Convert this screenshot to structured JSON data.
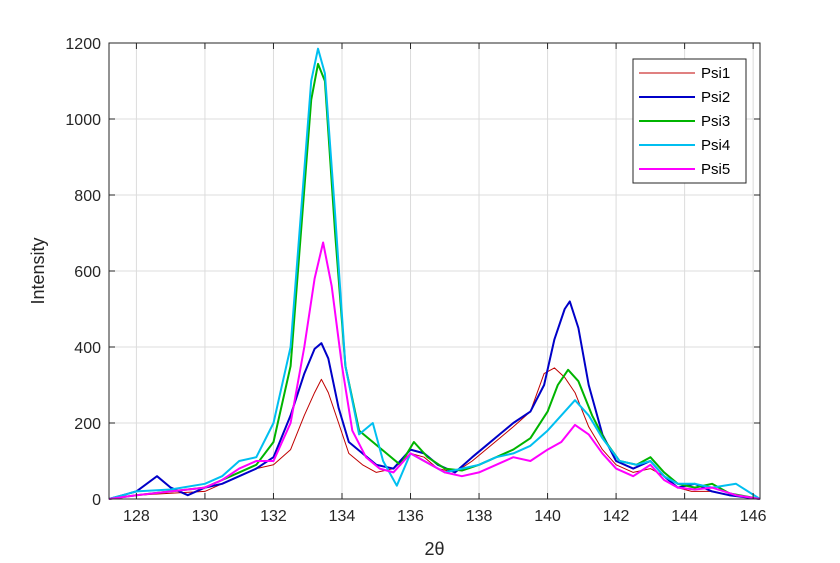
{
  "chart_data": {
    "type": "line",
    "xlabel": "2θ",
    "ylabel": "Intensity",
    "xlim": [
      127.2,
      146.2
    ],
    "ylim": [
      0,
      1200
    ],
    "xticks": [
      "128",
      "130",
      "132",
      "134",
      "136",
      "138",
      "140",
      "142",
      "144",
      "146"
    ],
    "yticks": [
      "0",
      "200",
      "400",
      "600",
      "800",
      "1000",
      "1200"
    ],
    "grid": true,
    "legend_position": "top-right",
    "series": [
      {
        "name": "Psi1",
        "color": "#c00000",
        "points": [
          [
            127.2,
            0
          ],
          [
            128,
            10
          ],
          [
            129,
            15
          ],
          [
            130,
            20
          ],
          [
            130.5,
            40
          ],
          [
            131,
            60
          ],
          [
            131.5,
            80
          ],
          [
            132,
            90
          ],
          [
            132.5,
            130
          ],
          [
            132.9,
            220
          ],
          [
            133.2,
            280
          ],
          [
            133.4,
            315
          ],
          [
            133.6,
            280
          ],
          [
            133.9,
            200
          ],
          [
            134.2,
            120
          ],
          [
            134.6,
            90
          ],
          [
            135,
            70
          ],
          [
            135.5,
            80
          ],
          [
            136,
            120
          ],
          [
            136.4,
            110
          ],
          [
            136.8,
            80
          ],
          [
            137.3,
            70
          ],
          [
            137.8,
            100
          ],
          [
            138.2,
            130
          ],
          [
            138.6,
            160
          ],
          [
            139,
            190
          ],
          [
            139.5,
            230
          ],
          [
            139.9,
            330
          ],
          [
            140.2,
            345
          ],
          [
            140.5,
            320
          ],
          [
            140.8,
            280
          ],
          [
            141.2,
            190
          ],
          [
            141.6,
            130
          ],
          [
            142,
            90
          ],
          [
            142.5,
            70
          ],
          [
            143,
            80
          ],
          [
            143.4,
            60
          ],
          [
            143.8,
            30
          ],
          [
            144.2,
            20
          ],
          [
            144.8,
            20
          ],
          [
            145.3,
            10
          ],
          [
            146.2,
            0
          ]
        ]
      },
      {
        "name": "Psi2",
        "color": "#0000c8",
        "points": [
          [
            127.2,
            0
          ],
          [
            128,
            20
          ],
          [
            128.6,
            60
          ],
          [
            129,
            30
          ],
          [
            129.5,
            10
          ],
          [
            130,
            30
          ],
          [
            130.5,
            40
          ],
          [
            131,
            60
          ],
          [
            131.5,
            80
          ],
          [
            132,
            110
          ],
          [
            132.5,
            220
          ],
          [
            132.9,
            330
          ],
          [
            133.2,
            395
          ],
          [
            133.4,
            410
          ],
          [
            133.6,
            370
          ],
          [
            133.9,
            240
          ],
          [
            134.2,
            150
          ],
          [
            134.6,
            120
          ],
          [
            135,
            90
          ],
          [
            135.5,
            80
          ],
          [
            136,
            130
          ],
          [
            136.4,
            120
          ],
          [
            136.8,
            90
          ],
          [
            137.3,
            70
          ],
          [
            137.8,
            110
          ],
          [
            138.2,
            140
          ],
          [
            138.6,
            170
          ],
          [
            139,
            200
          ],
          [
            139.5,
            230
          ],
          [
            139.9,
            300
          ],
          [
            140.2,
            420
          ],
          [
            140.5,
            500
          ],
          [
            140.65,
            520
          ],
          [
            140.9,
            450
          ],
          [
            141.2,
            300
          ],
          [
            141.6,
            170
          ],
          [
            142,
            100
          ],
          [
            142.5,
            80
          ],
          [
            143,
            100
          ],
          [
            143.4,
            60
          ],
          [
            143.8,
            30
          ],
          [
            144.3,
            40
          ],
          [
            144.8,
            20
          ],
          [
            145.3,
            10
          ],
          [
            146.2,
            0
          ]
        ]
      },
      {
        "name": "Psi3",
        "color": "#00b400",
        "points": [
          [
            127.2,
            0
          ],
          [
            128,
            10
          ],
          [
            129,
            20
          ],
          [
            130,
            30
          ],
          [
            130.5,
            50
          ],
          [
            131,
            70
          ],
          [
            131.5,
            90
          ],
          [
            132,
            150
          ],
          [
            132.5,
            350
          ],
          [
            132.8,
            700
          ],
          [
            133.1,
            1050
          ],
          [
            133.3,
            1145
          ],
          [
            133.5,
            1100
          ],
          [
            133.8,
            700
          ],
          [
            134.1,
            350
          ],
          [
            134.5,
            180
          ],
          [
            134.9,
            150
          ],
          [
            135.3,
            120
          ],
          [
            135.7,
            90
          ],
          [
            136.1,
            150
          ],
          [
            136.5,
            110
          ],
          [
            137,
            80
          ],
          [
            137.5,
            75
          ],
          [
            138,
            90
          ],
          [
            138.5,
            110
          ],
          [
            139,
            130
          ],
          [
            139.5,
            160
          ],
          [
            140,
            230
          ],
          [
            140.3,
            300
          ],
          [
            140.6,
            340
          ],
          [
            140.9,
            310
          ],
          [
            141.3,
            220
          ],
          [
            141.7,
            150
          ],
          [
            142.1,
            100
          ],
          [
            142.6,
            90
          ],
          [
            143,
            110
          ],
          [
            143.4,
            70
          ],
          [
            143.8,
            40
          ],
          [
            144.3,
            30
          ],
          [
            144.8,
            40
          ],
          [
            145.3,
            15
          ],
          [
            146.2,
            0
          ]
        ]
      },
      {
        "name": "Psi4",
        "color": "#00bff0",
        "points": [
          [
            127.2,
            0
          ],
          [
            128,
            20
          ],
          [
            129,
            25
          ],
          [
            130,
            40
          ],
          [
            130.5,
            60
          ],
          [
            131,
            100
          ],
          [
            131.5,
            110
          ],
          [
            132,
            200
          ],
          [
            132.5,
            400
          ],
          [
            132.8,
            750
          ],
          [
            133.1,
            1100
          ],
          [
            133.3,
            1185
          ],
          [
            133.5,
            1120
          ],
          [
            133.8,
            750
          ],
          [
            134.1,
            350
          ],
          [
            134.5,
            170
          ],
          [
            134.9,
            200
          ],
          [
            135.2,
            100
          ],
          [
            135.6,
            35
          ],
          [
            136,
            120
          ],
          [
            136.4,
            100
          ],
          [
            137,
            70
          ],
          [
            137.5,
            80
          ],
          [
            138,
            90
          ],
          [
            138.5,
            110
          ],
          [
            139,
            120
          ],
          [
            139.5,
            140
          ],
          [
            140,
            180
          ],
          [
            140.4,
            220
          ],
          [
            140.8,
            260
          ],
          [
            141.2,
            220
          ],
          [
            141.6,
            160
          ],
          [
            142.1,
            100
          ],
          [
            142.6,
            90
          ],
          [
            143,
            100
          ],
          [
            143.4,
            60
          ],
          [
            143.8,
            40
          ],
          [
            144.3,
            40
          ],
          [
            144.8,
            30
          ],
          [
            145.5,
            40
          ],
          [
            146.2,
            0
          ]
        ]
      },
      {
        "name": "Psi5",
        "color": "#ff00ff",
        "points": [
          [
            127.2,
            0
          ],
          [
            128,
            10
          ],
          [
            129,
            20
          ],
          [
            130,
            30
          ],
          [
            130.5,
            50
          ],
          [
            131,
            80
          ],
          [
            131.5,
            100
          ],
          [
            132,
            100
          ],
          [
            132.5,
            200
          ],
          [
            132.9,
            400
          ],
          [
            133.2,
            580
          ],
          [
            133.45,
            675
          ],
          [
            133.7,
            560
          ],
          [
            134,
            350
          ],
          [
            134.3,
            180
          ],
          [
            134.7,
            110
          ],
          [
            135.1,
            80
          ],
          [
            135.5,
            70
          ],
          [
            136,
            120
          ],
          [
            136.4,
            100
          ],
          [
            137,
            70
          ],
          [
            137.5,
            60
          ],
          [
            138,
            70
          ],
          [
            138.5,
            90
          ],
          [
            139,
            110
          ],
          [
            139.5,
            100
          ],
          [
            140,
            130
          ],
          [
            140.4,
            150
          ],
          [
            140.8,
            195
          ],
          [
            141.2,
            170
          ],
          [
            141.6,
            120
          ],
          [
            142,
            80
          ],
          [
            142.5,
            60
          ],
          [
            143,
            90
          ],
          [
            143.4,
            50
          ],
          [
            143.8,
            30
          ],
          [
            144.3,
            25
          ],
          [
            144.8,
            30
          ],
          [
            145.5,
            10
          ],
          [
            146.2,
            0
          ]
        ]
      }
    ]
  }
}
